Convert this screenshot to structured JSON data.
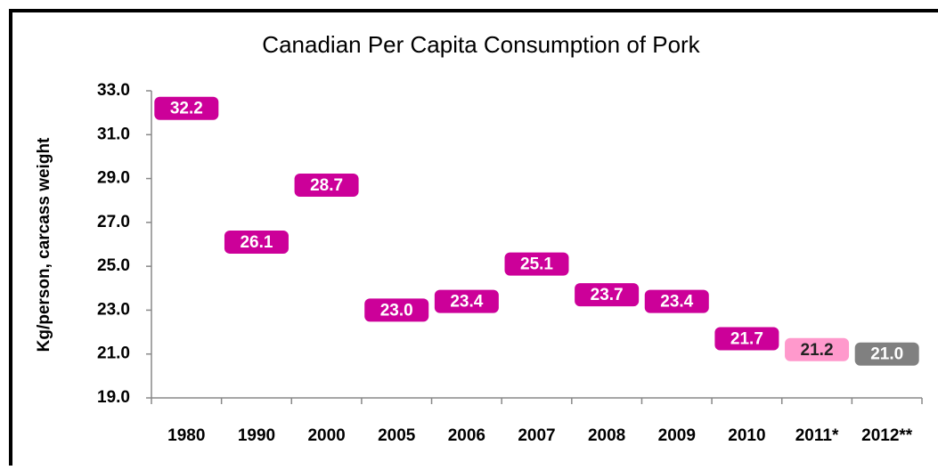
{
  "chart_data": {
    "type": "label-points",
    "title": "Canadian Per Capita Consumption of Pork",
    "y_label": "Kg/person, carcass weight",
    "categories": [
      "1980",
      "1990",
      "2000",
      "2005",
      "2006",
      "2007",
      "2008",
      "2009",
      "2010",
      "2011*",
      "2012**"
    ],
    "values": [
      32.2,
      26.1,
      28.7,
      23.0,
      23.4,
      25.1,
      23.7,
      23.4,
      21.7,
      21.2,
      21.0
    ],
    "value_labels": [
      "32.2",
      "26.1",
      "28.7",
      "23.0",
      "23.4",
      "25.1",
      "23.7",
      "23.4",
      "21.7",
      "21.2",
      "21.0"
    ],
    "colors": [
      "#cc0099",
      "#cc0099",
      "#cc0099",
      "#cc0099",
      "#cc0099",
      "#cc0099",
      "#cc0099",
      "#cc0099",
      "#cc0099",
      "#ff99cc",
      "#808080"
    ],
    "label_colors": [
      "#ffffff",
      "#ffffff",
      "#ffffff",
      "#ffffff",
      "#ffffff",
      "#ffffff",
      "#ffffff",
      "#ffffff",
      "#ffffff",
      "#222222",
      "#ffffff"
    ],
    "ylim": [
      19,
      33
    ],
    "yticks": [
      {
        "value": 19,
        "label": "19.0"
      },
      {
        "value": 21,
        "label": "21.0"
      },
      {
        "value": 23,
        "label": "23.0"
      },
      {
        "value": 25,
        "label": "25.0"
      },
      {
        "value": 27,
        "label": "27.0"
      },
      {
        "value": 29,
        "label": "29.0"
      },
      {
        "value": 31,
        "label": "31.0"
      },
      {
        "value": 33,
        "label": "33.0"
      }
    ]
  }
}
